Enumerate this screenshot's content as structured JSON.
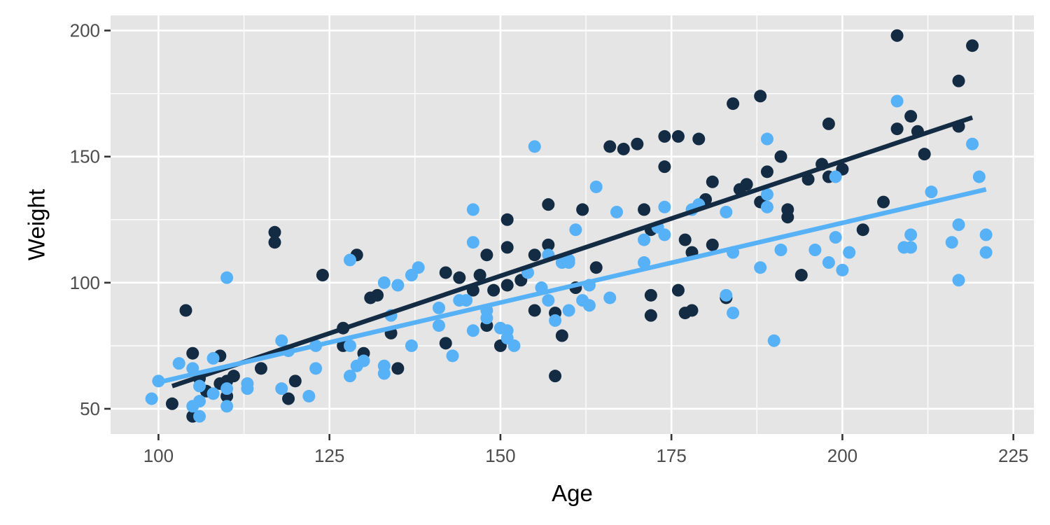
{
  "chart_data": {
    "type": "scatter",
    "xlabel": "Age",
    "ylabel": "Weight",
    "xlim": [
      93,
      228
    ],
    "ylim": [
      40,
      206
    ],
    "x_ticks": [
      100,
      125,
      150,
      175,
      200,
      225
    ],
    "y_ticks": [
      50,
      100,
      150,
      200
    ],
    "x_tick_labels": [
      "100",
      "125",
      "150",
      "175",
      "200",
      "225"
    ],
    "y_tick_labels": [
      "50",
      "100",
      "150",
      "200"
    ],
    "grid": true,
    "legend": "none",
    "series": [
      {
        "color": "#132b43",
        "points": [
          [
            102,
            52
          ],
          [
            104,
            89
          ],
          [
            105,
            72
          ],
          [
            105,
            47
          ],
          [
            106,
            62
          ],
          [
            107,
            57
          ],
          [
            109,
            71
          ],
          [
            109,
            60
          ],
          [
            110,
            61
          ],
          [
            110,
            55
          ],
          [
            111,
            63
          ],
          [
            115,
            66
          ],
          [
            117,
            120
          ],
          [
            117,
            116
          ],
          [
            119,
            54
          ],
          [
            120,
            61
          ],
          [
            124,
            103
          ],
          [
            127,
            82
          ],
          [
            127,
            75
          ],
          [
            129,
            111
          ],
          [
            130,
            72
          ],
          [
            131,
            94
          ],
          [
            132,
            95
          ],
          [
            134,
            80
          ],
          [
            135,
            66
          ],
          [
            142,
            104
          ],
          [
            142,
            76
          ],
          [
            144,
            102
          ],
          [
            146,
            97
          ],
          [
            147,
            103
          ],
          [
            148,
            111
          ],
          [
            148,
            83
          ],
          [
            149,
            97
          ],
          [
            150,
            75
          ],
          [
            151,
            125
          ],
          [
            151,
            114
          ],
          [
            151,
            99
          ],
          [
            153,
            101
          ],
          [
            155,
            111
          ],
          [
            155,
            89
          ],
          [
            157,
            131
          ],
          [
            157,
            115
          ],
          [
            158,
            88
          ],
          [
            158,
            63
          ],
          [
            159,
            79
          ],
          [
            161,
            98
          ],
          [
            162,
            129
          ],
          [
            164,
            106
          ],
          [
            166,
            154
          ],
          [
            168,
            153
          ],
          [
            170,
            155
          ],
          [
            171,
            129
          ],
          [
            172,
            121
          ],
          [
            172,
            95
          ],
          [
            172,
            87
          ],
          [
            174,
            158
          ],
          [
            174,
            146
          ],
          [
            176,
            158
          ],
          [
            176,
            97
          ],
          [
            177,
            117
          ],
          [
            177,
            88
          ],
          [
            178,
            112
          ],
          [
            178,
            89
          ],
          [
            179,
            157
          ],
          [
            180,
            133
          ],
          [
            181,
            140
          ],
          [
            181,
            115
          ],
          [
            183,
            94
          ],
          [
            184,
            171
          ],
          [
            185,
            137
          ],
          [
            186,
            139
          ],
          [
            188,
            174
          ],
          [
            188,
            132
          ],
          [
            189,
            144
          ],
          [
            191,
            150
          ],
          [
            192,
            129
          ],
          [
            192,
            126
          ],
          [
            194,
            103
          ],
          [
            195,
            141
          ],
          [
            197,
            147
          ],
          [
            198,
            163
          ],
          [
            198,
            142
          ],
          [
            200,
            145
          ],
          [
            203,
            121
          ],
          [
            206,
            132
          ],
          [
            208,
            198
          ],
          [
            208,
            161
          ],
          [
            210,
            166
          ],
          [
            211,
            160
          ],
          [
            212,
            151
          ],
          [
            217,
            180
          ],
          [
            217,
            162
          ],
          [
            219,
            194
          ]
        ],
        "fit": [
          [
            102,
            59
          ],
          [
            219,
            165.5
          ]
        ]
      },
      {
        "color": "#56b1f7",
        "points": [
          [
            99,
            54
          ],
          [
            100,
            61
          ],
          [
            103,
            68
          ],
          [
            105,
            66
          ],
          [
            105,
            51
          ],
          [
            106,
            59
          ],
          [
            106,
            53
          ],
          [
            106,
            47
          ],
          [
            108,
            70
          ],
          [
            108,
            56
          ],
          [
            110,
            102
          ],
          [
            110,
            58
          ],
          [
            110,
            51
          ],
          [
            113,
            60
          ],
          [
            113,
            58
          ],
          [
            118,
            77
          ],
          [
            118,
            58
          ],
          [
            119,
            73
          ],
          [
            122,
            55
          ],
          [
            123,
            75
          ],
          [
            123,
            66
          ],
          [
            128,
            109
          ],
          [
            128,
            75
          ],
          [
            128,
            63
          ],
          [
            129,
            67
          ],
          [
            130,
            69
          ],
          [
            133,
            100
          ],
          [
            133,
            67
          ],
          [
            133,
            64
          ],
          [
            134,
            87
          ],
          [
            135,
            99
          ],
          [
            137,
            103
          ],
          [
            137,
            75
          ],
          [
            138,
            106
          ],
          [
            141,
            90
          ],
          [
            141,
            83
          ],
          [
            143,
            71
          ],
          [
            144,
            93
          ],
          [
            145,
            93
          ],
          [
            146,
            129
          ],
          [
            146,
            116
          ],
          [
            146,
            81
          ],
          [
            148,
            89
          ],
          [
            148,
            86
          ],
          [
            150,
            82
          ],
          [
            151,
            81
          ],
          [
            151,
            78
          ],
          [
            152,
            75
          ],
          [
            154,
            104
          ],
          [
            155,
            154
          ],
          [
            156,
            98
          ],
          [
            157,
            111
          ],
          [
            157,
            93
          ],
          [
            158,
            85
          ],
          [
            159,
            108
          ],
          [
            160,
            109
          ],
          [
            160,
            108
          ],
          [
            160,
            89
          ],
          [
            161,
            121
          ],
          [
            162,
            93
          ],
          [
            163,
            99
          ],
          [
            163,
            91
          ],
          [
            164,
            138
          ],
          [
            166,
            94
          ],
          [
            167,
            128
          ],
          [
            171,
            117
          ],
          [
            171,
            108
          ],
          [
            173,
            122
          ],
          [
            174,
            130
          ],
          [
            174,
            119
          ],
          [
            178,
            129
          ],
          [
            179,
            131
          ],
          [
            183,
            128
          ],
          [
            183,
            95
          ],
          [
            184,
            112
          ],
          [
            184,
            88
          ],
          [
            188,
            106
          ],
          [
            189,
            157
          ],
          [
            189,
            135
          ],
          [
            189,
            130
          ],
          [
            190,
            77
          ],
          [
            191,
            113
          ],
          [
            196,
            113
          ],
          [
            198,
            108
          ],
          [
            199,
            142
          ],
          [
            199,
            118
          ],
          [
            200,
            105
          ],
          [
            201,
            112
          ],
          [
            208,
            172
          ],
          [
            209,
            114
          ],
          [
            210,
            119
          ],
          [
            210,
            114
          ],
          [
            213,
            136
          ],
          [
            216,
            116
          ],
          [
            217,
            123
          ],
          [
            217,
            101
          ],
          [
            219,
            155
          ],
          [
            220,
            142
          ],
          [
            221,
            119
          ],
          [
            221,
            112
          ]
        ],
        "fit": [
          [
            100,
            60.5
          ],
          [
            221,
            137
          ]
        ]
      }
    ]
  }
}
